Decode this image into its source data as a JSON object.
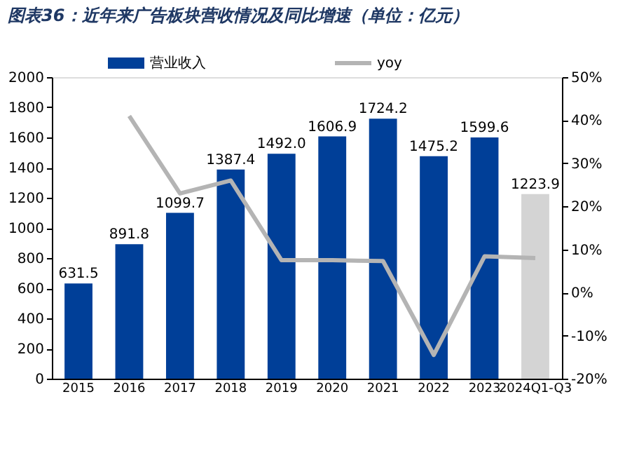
{
  "chart_data": {
    "type": "bar",
    "title": "图表36：近年来广告板块营收情况及同比增速（单位：亿元）",
    "categories": [
      "2015",
      "2016",
      "2017",
      "2018",
      "2019",
      "2020",
      "2021",
      "2022",
      "2023",
      "2024Q1-Q3"
    ],
    "series": [
      {
        "name": "营业收入",
        "type": "bar",
        "color": "#003f98",
        "colors": [
          "#003f98",
          "#003f98",
          "#003f98",
          "#003f98",
          "#003f98",
          "#003f98",
          "#003f98",
          "#003f98",
          "#003f98",
          "#d4d4d4"
        ],
        "values": [
          631.5,
          891.8,
          1099.7,
          1387.4,
          1492.0,
          1606.9,
          1724.2,
          1475.2,
          1599.6,
          1223.9
        ],
        "value_labels": [
          "631.5",
          "891.8",
          "1099.7",
          "1387.4",
          "1492.0",
          "1606.9",
          "1724.2",
          "1475.2",
          "1599.6",
          "1223.9"
        ]
      },
      {
        "name": "yoy",
        "type": "line",
        "axis": "y2",
        "color": "#b4b4b4",
        "values": [
          null,
          41,
          23,
          26,
          7.5,
          7.5,
          7.3,
          -14.5,
          8.4,
          8.0
        ]
      }
    ],
    "ylim": [
      0,
      2000
    ],
    "yticks": [
      0,
      200,
      400,
      600,
      800,
      1000,
      1200,
      1400,
      1600,
      1800,
      2000
    ],
    "y2lim": [
      -20,
      50
    ],
    "y2ticks": [
      {
        "value": -20,
        "label": "-20%"
      },
      {
        "value": -10,
        "label": "-10%"
      },
      {
        "value": 0,
        "label": "0%"
      },
      {
        "value": 10,
        "label": "10%"
      },
      {
        "value": 20,
        "label": "20%"
      },
      {
        "value": 30,
        "label": "30%"
      },
      {
        "value": 40,
        "label": "40%"
      },
      {
        "value": 50,
        "label": "50%"
      }
    ],
    "grid": false,
    "legend": "top",
    "marker": "none",
    "line_style": "solid"
  }
}
